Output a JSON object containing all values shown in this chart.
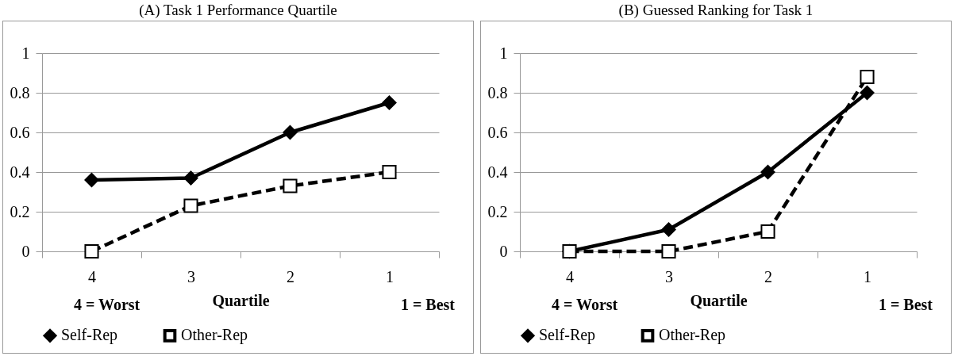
{
  "chart_data": [
    {
      "type": "line",
      "title": "(A) Task 1 Performance Quartile",
      "xlabel": "Quartile",
      "annotations": [
        "4 = Worst",
        "1 = Best"
      ],
      "categories": [
        "4",
        "3",
        "2",
        "1"
      ],
      "ylim": [
        0,
        1
      ],
      "yticks": [
        0,
        0.2,
        0.4,
        0.6,
        0.8,
        1
      ],
      "grid": "y",
      "legend": "bottom",
      "series": [
        {
          "name": "Self-Rep",
          "color": "#000000",
          "marker": "diamond",
          "line_style": "solid",
          "values": [
            0.36,
            0.37,
            0.6,
            0.75
          ]
        },
        {
          "name": "Other-Rep",
          "color": "#000000",
          "marker": "square",
          "line_style": "dashed",
          "values": [
            0,
            0.23,
            0.33,
            0.4
          ]
        }
      ]
    },
    {
      "type": "line",
      "title": "(B) Guessed Ranking for Task 1",
      "xlabel": "Quartile",
      "annotations": [
        "4 = Worst",
        "1 = Best"
      ],
      "categories": [
        "4",
        "3",
        "2",
        "1"
      ],
      "ylim": [
        0,
        1
      ],
      "yticks": [
        0,
        0.2,
        0.4,
        0.6,
        0.8,
        1
      ],
      "grid": "y",
      "legend": "bottom",
      "series": [
        {
          "name": "Self-Rep",
          "color": "#000000",
          "marker": "diamond",
          "line_style": "solid",
          "values": [
            0,
            0.11,
            0.4,
            0.8
          ]
        },
        {
          "name": "Other-Rep",
          "color": "#000000",
          "marker": "square",
          "line_style": "dashed",
          "values": [
            0,
            0,
            0.1,
            0.88
          ]
        }
      ]
    }
  ]
}
